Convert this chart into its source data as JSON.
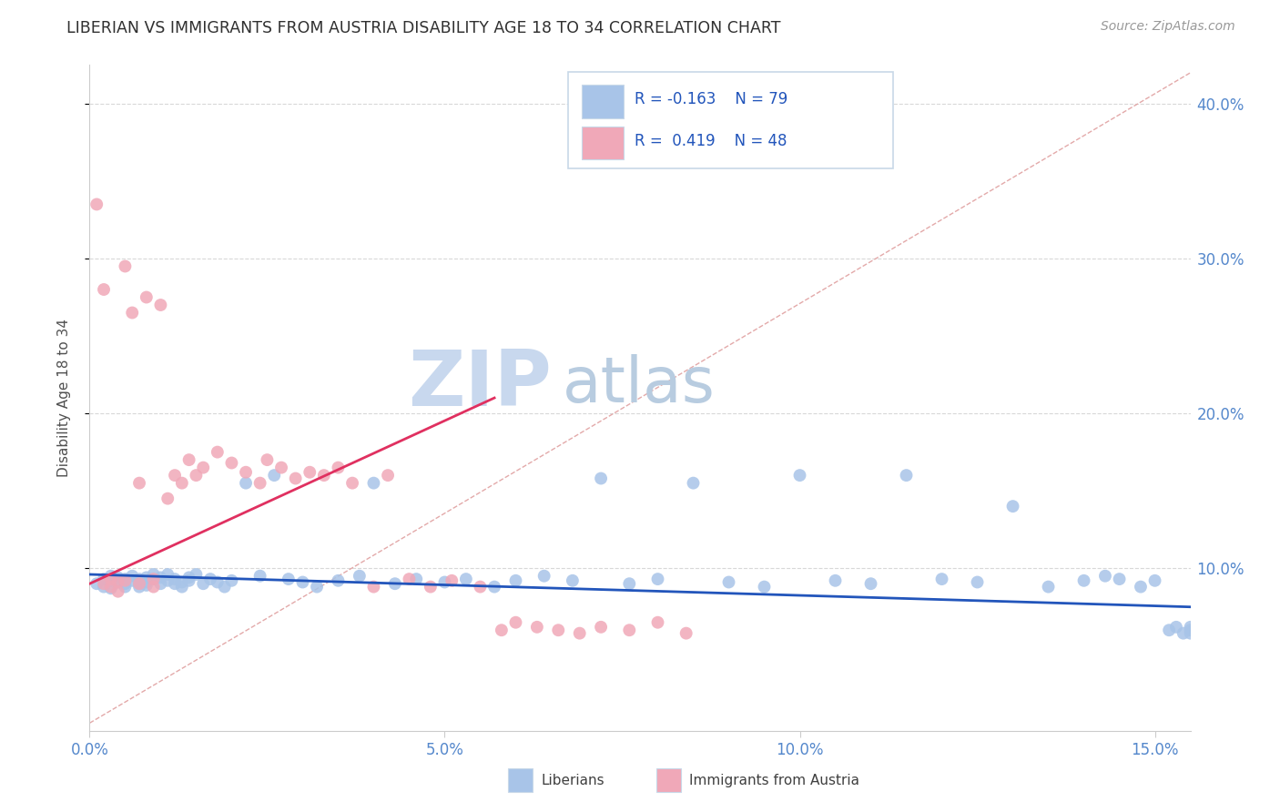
{
  "title": "LIBERIAN VS IMMIGRANTS FROM AUSTRIA DISABILITY AGE 18 TO 34 CORRELATION CHART",
  "source_text": "Source: ZipAtlas.com",
  "ylabel": "Disability Age 18 to 34",
  "xlim": [
    0.0,
    0.155
  ],
  "ylim": [
    -0.005,
    0.425
  ],
  "xticks": [
    0.0,
    0.05,
    0.1,
    0.15
  ],
  "xticklabels": [
    "0.0%",
    "5.0%",
    "10.0%",
    "15.0%"
  ],
  "yticks": [
    0.1,
    0.2,
    0.3,
    0.4
  ],
  "yticklabels": [
    "10.0%",
    "20.0%",
    "30.0%",
    "40.0%"
  ],
  "blue_color": "#a8c4e8",
  "pink_color": "#f0a8b8",
  "blue_line_color": "#2255bb",
  "pink_line_color": "#e03060",
  "diag_color": "#e0a0a0",
  "title_color": "#303030",
  "axis_tick_color": "#5588cc",
  "legend_text_color": "#2255bb",
  "legend_border_color": "#c8d8e8",
  "watermark_zip_color": "#c8d8ee",
  "watermark_atlas_color": "#b8cce0",
  "blue_x": [
    0.001,
    0.002,
    0.002,
    0.003,
    0.003,
    0.003,
    0.004,
    0.004,
    0.005,
    0.005,
    0.005,
    0.006,
    0.006,
    0.007,
    0.007,
    0.007,
    0.008,
    0.008,
    0.008,
    0.009,
    0.009,
    0.01,
    0.01,
    0.011,
    0.011,
    0.012,
    0.012,
    0.013,
    0.013,
    0.014,
    0.014,
    0.015,
    0.016,
    0.017,
    0.018,
    0.019,
    0.02,
    0.022,
    0.024,
    0.026,
    0.028,
    0.03,
    0.032,
    0.035,
    0.038,
    0.04,
    0.043,
    0.046,
    0.05,
    0.053,
    0.057,
    0.06,
    0.064,
    0.068,
    0.072,
    0.076,
    0.08,
    0.085,
    0.09,
    0.095,
    0.1,
    0.105,
    0.11,
    0.115,
    0.12,
    0.125,
    0.13,
    0.135,
    0.14,
    0.143,
    0.145,
    0.148,
    0.15,
    0.152,
    0.153,
    0.154,
    0.155,
    0.155,
    0.155
  ],
  "blue_y": [
    0.09,
    0.088,
    0.093,
    0.092,
    0.087,
    0.095,
    0.091,
    0.094,
    0.09,
    0.093,
    0.088,
    0.092,
    0.095,
    0.09,
    0.093,
    0.088,
    0.091,
    0.094,
    0.089,
    0.093,
    0.096,
    0.09,
    0.094,
    0.092,
    0.096,
    0.09,
    0.093,
    0.091,
    0.088,
    0.094,
    0.092,
    0.096,
    0.09,
    0.093,
    0.091,
    0.088,
    0.092,
    0.155,
    0.095,
    0.16,
    0.093,
    0.091,
    0.088,
    0.092,
    0.095,
    0.155,
    0.09,
    0.093,
    0.091,
    0.093,
    0.088,
    0.092,
    0.095,
    0.092,
    0.158,
    0.09,
    0.093,
    0.155,
    0.091,
    0.088,
    0.16,
    0.092,
    0.09,
    0.16,
    0.093,
    0.091,
    0.14,
    0.088,
    0.092,
    0.095,
    0.093,
    0.088,
    0.092,
    0.06,
    0.062,
    0.058,
    0.06,
    0.062,
    0.058
  ],
  "pink_x": [
    0.001,
    0.002,
    0.002,
    0.003,
    0.003,
    0.004,
    0.004,
    0.005,
    0.005,
    0.006,
    0.007,
    0.007,
    0.008,
    0.009,
    0.009,
    0.01,
    0.011,
    0.012,
    0.013,
    0.014,
    0.015,
    0.016,
    0.018,
    0.02,
    0.022,
    0.024,
    0.025,
    0.027,
    0.029,
    0.031,
    0.033,
    0.035,
    0.037,
    0.04,
    0.042,
    0.045,
    0.048,
    0.051,
    0.055,
    0.058,
    0.06,
    0.063,
    0.066,
    0.069,
    0.072,
    0.076,
    0.08,
    0.084
  ],
  "pink_y": [
    0.335,
    0.09,
    0.28,
    0.093,
    0.088,
    0.091,
    0.085,
    0.295,
    0.092,
    0.265,
    0.09,
    0.155,
    0.275,
    0.093,
    0.088,
    0.27,
    0.145,
    0.16,
    0.155,
    0.17,
    0.16,
    0.165,
    0.175,
    0.168,
    0.162,
    0.155,
    0.17,
    0.165,
    0.158,
    0.162,
    0.16,
    0.165,
    0.155,
    0.088,
    0.16,
    0.093,
    0.088,
    0.092,
    0.088,
    0.06,
    0.065,
    0.062,
    0.06,
    0.058,
    0.062,
    0.06,
    0.065,
    0.058
  ],
  "blue_trend_x": [
    0.0,
    0.155
  ],
  "blue_trend_y": [
    0.096,
    0.075
  ],
  "pink_trend_x": [
    0.0,
    0.057
  ],
  "pink_trend_y": [
    0.09,
    0.21
  ]
}
